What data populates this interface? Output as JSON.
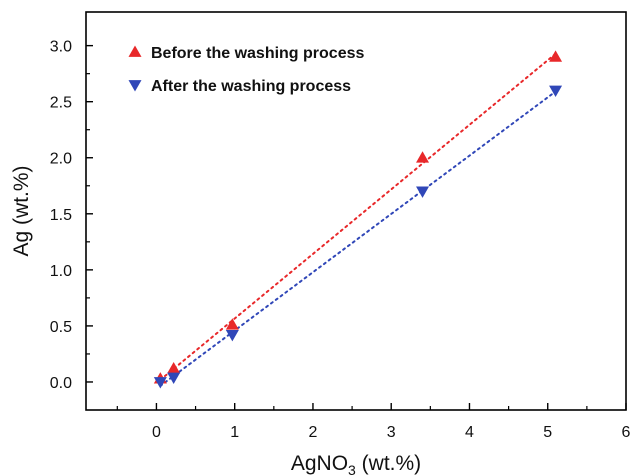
{
  "chart_data": {
    "type": "scatter",
    "title": "",
    "xlabel": "AgNO",
    "xlabel_sub": "3",
    "xlabel_suffix": " (wt.%)",
    "ylabel": "Ag (wt.%)",
    "xlim": [
      -0.9,
      6
    ],
    "ylim": [
      -0.25,
      3.3
    ],
    "x_ticks": [
      0,
      1,
      2,
      3,
      4,
      5,
      6
    ],
    "y_ticks": [
      0.0,
      0.5,
      1.0,
      1.5,
      2.0,
      2.5,
      3.0
    ],
    "x_tick_labels": [
      "0",
      "1",
      "2",
      "3",
      "4",
      "5",
      "6"
    ],
    "y_tick_labels": [
      "0.0",
      "0.5",
      "1.0",
      "1.5",
      "2.0",
      "2.5",
      "3.0"
    ],
    "grid": false,
    "legend_position": "top-left",
    "series": [
      {
        "name": "Before the washing process",
        "marker": "triangle-up",
        "color": "#e8282a",
        "trend_line": "dotted",
        "x": [
          0.05,
          0.22,
          0.97,
          3.4,
          5.1
        ],
        "y": [
          0.03,
          0.12,
          0.51,
          2.0,
          2.9
        ]
      },
      {
        "name": "After the washing process",
        "marker": "triangle-down",
        "color": "#3047b8",
        "trend_line": "dotted",
        "x": [
          0.05,
          0.22,
          0.97,
          3.4,
          5.1
        ],
        "y": [
          0.0,
          0.04,
          0.42,
          1.7,
          2.6
        ]
      }
    ]
  }
}
